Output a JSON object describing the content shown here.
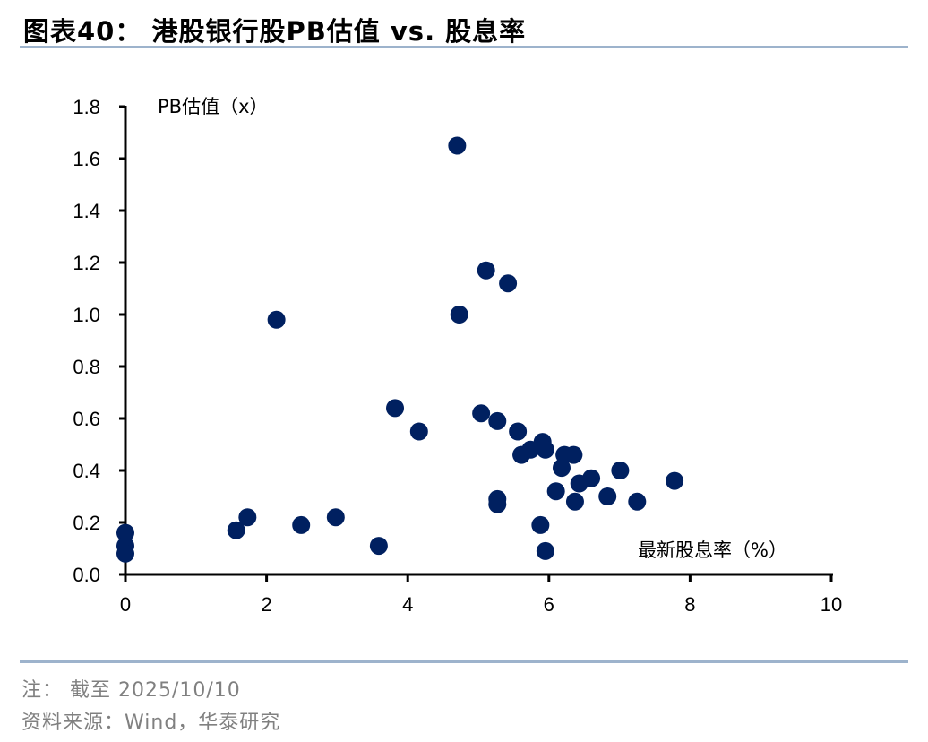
{
  "header": {
    "title": "图表40：  港股银行股PB估值 vs. 股息率"
  },
  "footer": {
    "note": "注：  截至 2025/10/10",
    "source": "资料来源：Wind，华泰研究"
  },
  "colors": {
    "marker": "#002060",
    "rule": "#9db3cc",
    "axis": "#000000",
    "footer_text": "#808080"
  },
  "chart_data": {
    "type": "scatter",
    "title": "港股银行股PB估值 vs. 股息率",
    "xlabel": "最新股息率（%）",
    "ylabel": "PB估值（x）",
    "xlim": [
      0,
      10
    ],
    "ylim": [
      0,
      1.8
    ],
    "xticks": [
      0,
      2,
      4,
      6,
      8,
      10
    ],
    "yticks": [
      0.0,
      0.2,
      0.4,
      0.6,
      0.8,
      1.0,
      1.2,
      1.4,
      1.6,
      1.8
    ],
    "xtick_labels": [
      "0",
      "2",
      "4",
      "6",
      "8",
      "10"
    ],
    "ytick_labels": [
      "0.0",
      "0.2",
      "0.4",
      "0.6",
      "0.8",
      "1.0",
      "1.2",
      "1.4",
      "1.6",
      "1.8"
    ],
    "grid": false,
    "legend": null,
    "series": [
      {
        "name": "港股银行股",
        "points": [
          {
            "x": 0.0,
            "y": 0.16
          },
          {
            "x": 0.0,
            "y": 0.11
          },
          {
            "x": 0.0,
            "y": 0.08
          },
          {
            "x": 1.57,
            "y": 0.17
          },
          {
            "x": 1.73,
            "y": 0.22
          },
          {
            "x": 2.14,
            "y": 0.98
          },
          {
            "x": 2.49,
            "y": 0.19
          },
          {
            "x": 2.98,
            "y": 0.22
          },
          {
            "x": 3.59,
            "y": 0.11
          },
          {
            "x": 3.82,
            "y": 0.64
          },
          {
            "x": 4.16,
            "y": 0.55
          },
          {
            "x": 4.7,
            "y": 1.65
          },
          {
            "x": 4.73,
            "y": 1.0
          },
          {
            "x": 5.04,
            "y": 0.62
          },
          {
            "x": 5.11,
            "y": 1.17
          },
          {
            "x": 5.27,
            "y": 0.59
          },
          {
            "x": 5.27,
            "y": 0.29
          },
          {
            "x": 5.27,
            "y": 0.27
          },
          {
            "x": 5.42,
            "y": 1.12
          },
          {
            "x": 5.56,
            "y": 0.55
          },
          {
            "x": 5.61,
            "y": 0.46
          },
          {
            "x": 5.74,
            "y": 0.48
          },
          {
            "x": 5.88,
            "y": 0.19
          },
          {
            "x": 5.91,
            "y": 0.51
          },
          {
            "x": 5.95,
            "y": 0.48
          },
          {
            "x": 5.95,
            "y": 0.09
          },
          {
            "x": 6.1,
            "y": 0.32
          },
          {
            "x": 6.18,
            "y": 0.41
          },
          {
            "x": 6.22,
            "y": 0.46
          },
          {
            "x": 6.35,
            "y": 0.46
          },
          {
            "x": 6.37,
            "y": 0.28
          },
          {
            "x": 6.43,
            "y": 0.35
          },
          {
            "x": 6.6,
            "y": 0.37
          },
          {
            "x": 6.83,
            "y": 0.3
          },
          {
            "x": 7.01,
            "y": 0.4
          },
          {
            "x": 7.25,
            "y": 0.28
          },
          {
            "x": 7.78,
            "y": 0.36
          }
        ]
      }
    ]
  }
}
